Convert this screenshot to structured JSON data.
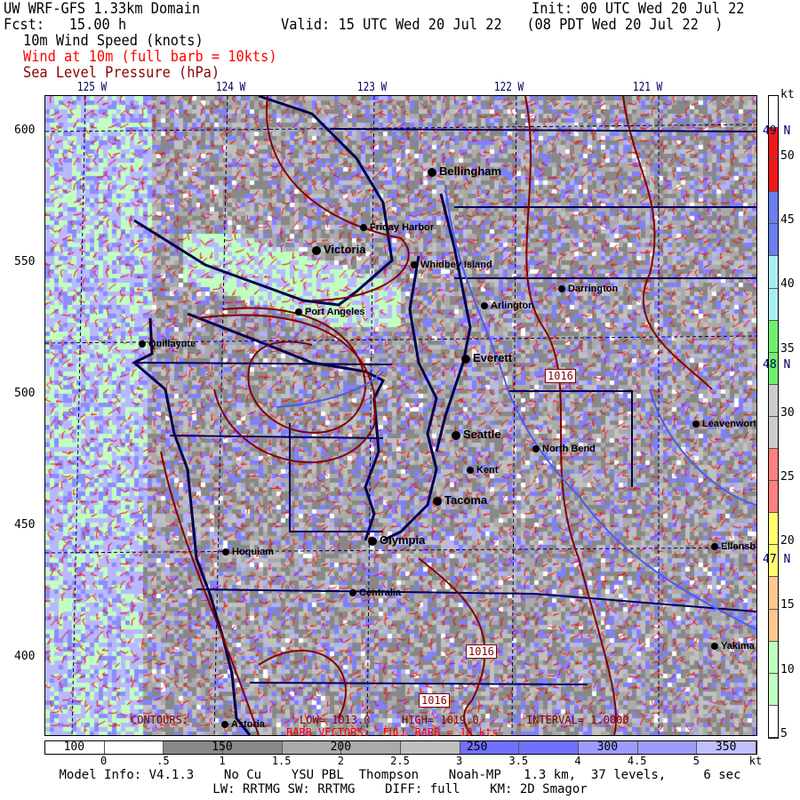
{
  "header": {
    "title": "UW WRF-GFS 1.33km Domain",
    "init": "Init: 00 UTC Wed 20 Jul 22",
    "fcst": "Fcst:   15.00 h",
    "valid": "Valid: 15 UTC Wed 20 Jul 22   (08 PDT Wed 20 Jul 22  )",
    "field1": "10m Wind Speed (knots)",
    "field2": "Wind at 10m (full barb = 10kts)",
    "field3": "Sea Level Pressure (hPa)"
  },
  "colors": {
    "field2": "#ff0000",
    "field3": "#8b0000",
    "coast": "#000050",
    "contour": "#800000",
    "barb": "#ff0000"
  },
  "map": {
    "lon_labels": [
      "125 W",
      "124 W",
      "123 W",
      "122 W",
      "121 W"
    ],
    "lat_labels": [
      "49 N",
      "48 N",
      "47 N"
    ],
    "y_labels": [
      "600",
      "550",
      "500",
      "450",
      "400"
    ],
    "cities": [
      {
        "name": "Bellingham",
        "big": true
      },
      {
        "name": "Friday Harbor"
      },
      {
        "name": "Victoria",
        "big": true
      },
      {
        "name": "Whidbey Island"
      },
      {
        "name": "Darrington"
      },
      {
        "name": "Arlington"
      },
      {
        "name": "Port Angeles"
      },
      {
        "name": "Quillayute"
      },
      {
        "name": "Everett",
        "big": true
      },
      {
        "name": "Seattle",
        "big": true
      },
      {
        "name": "North Bend"
      },
      {
        "name": "Kent"
      },
      {
        "name": "Tacoma",
        "big": true
      },
      {
        "name": "Olympia",
        "big": true
      },
      {
        "name": "Hoquiam"
      },
      {
        "name": "Centralia"
      },
      {
        "name": "Astoria"
      },
      {
        "name": "Leavenworth"
      },
      {
        "name": "Ellensburg"
      },
      {
        "name": "Yakima"
      }
    ],
    "contour_labels": [
      "1016",
      "1016",
      "1016"
    ],
    "contours_text": "CONTOURS:",
    "low_text": "LOW= 1013.0",
    "high_text": "HIGH= 1019.0",
    "interval_text": "INTERVAL= 1.0000",
    "barb_text": "BARB VECTORS:  FULL BARB = 10 kts"
  },
  "wind_colorbar": {
    "unit": "kt",
    "labels": [
      "50",
      "45",
      "40",
      "35",
      "30",
      "25",
      "20",
      "15",
      "10",
      "5"
    ],
    "colors": [
      "#ffffff",
      "#f01818",
      "#f01818",
      "#6a7ff0",
      "#6a7ff0",
      "#a8f0f0",
      "#a8f0f0",
      "#70f070",
      "#70f070",
      "#cccccc",
      "#cccccc",
      "#ff8080",
      "#ff8080",
      "#ffff70",
      "#ffff70",
      "#ffc890",
      "#ffc890",
      "#c0ffc0",
      "#c0ffc0",
      "#ffffff"
    ]
  },
  "terrain_colorbar": {
    "labels": [
      "100",
      "150",
      "200",
      "250",
      "300",
      "350"
    ],
    "ticks": [
      "0",
      ".5",
      "1",
      "1.5",
      "2",
      "2.5",
      "3",
      "3.5",
      "4",
      "4.5",
      "5",
      "kt"
    ],
    "colors": [
      "#ffffff",
      "#ffffff",
      "#888888",
      "#888888",
      "#aaaaaa",
      "#aaaaaa",
      "#c0c0c0",
      "#7070ff",
      "#7070ff",
      "#9c9cff",
      "#9c9cff",
      "#c0c0ff"
    ]
  },
  "footer": {
    "line1": "Model Info: V4.1.3    No Cu    YSU PBL  Thompson    Noah-MP   1.3 km,  37 levels,     6 sec",
    "line2": "LW: RRTMG SW: RRTMG    DIFF: full    KM: 2D Smagor"
  }
}
